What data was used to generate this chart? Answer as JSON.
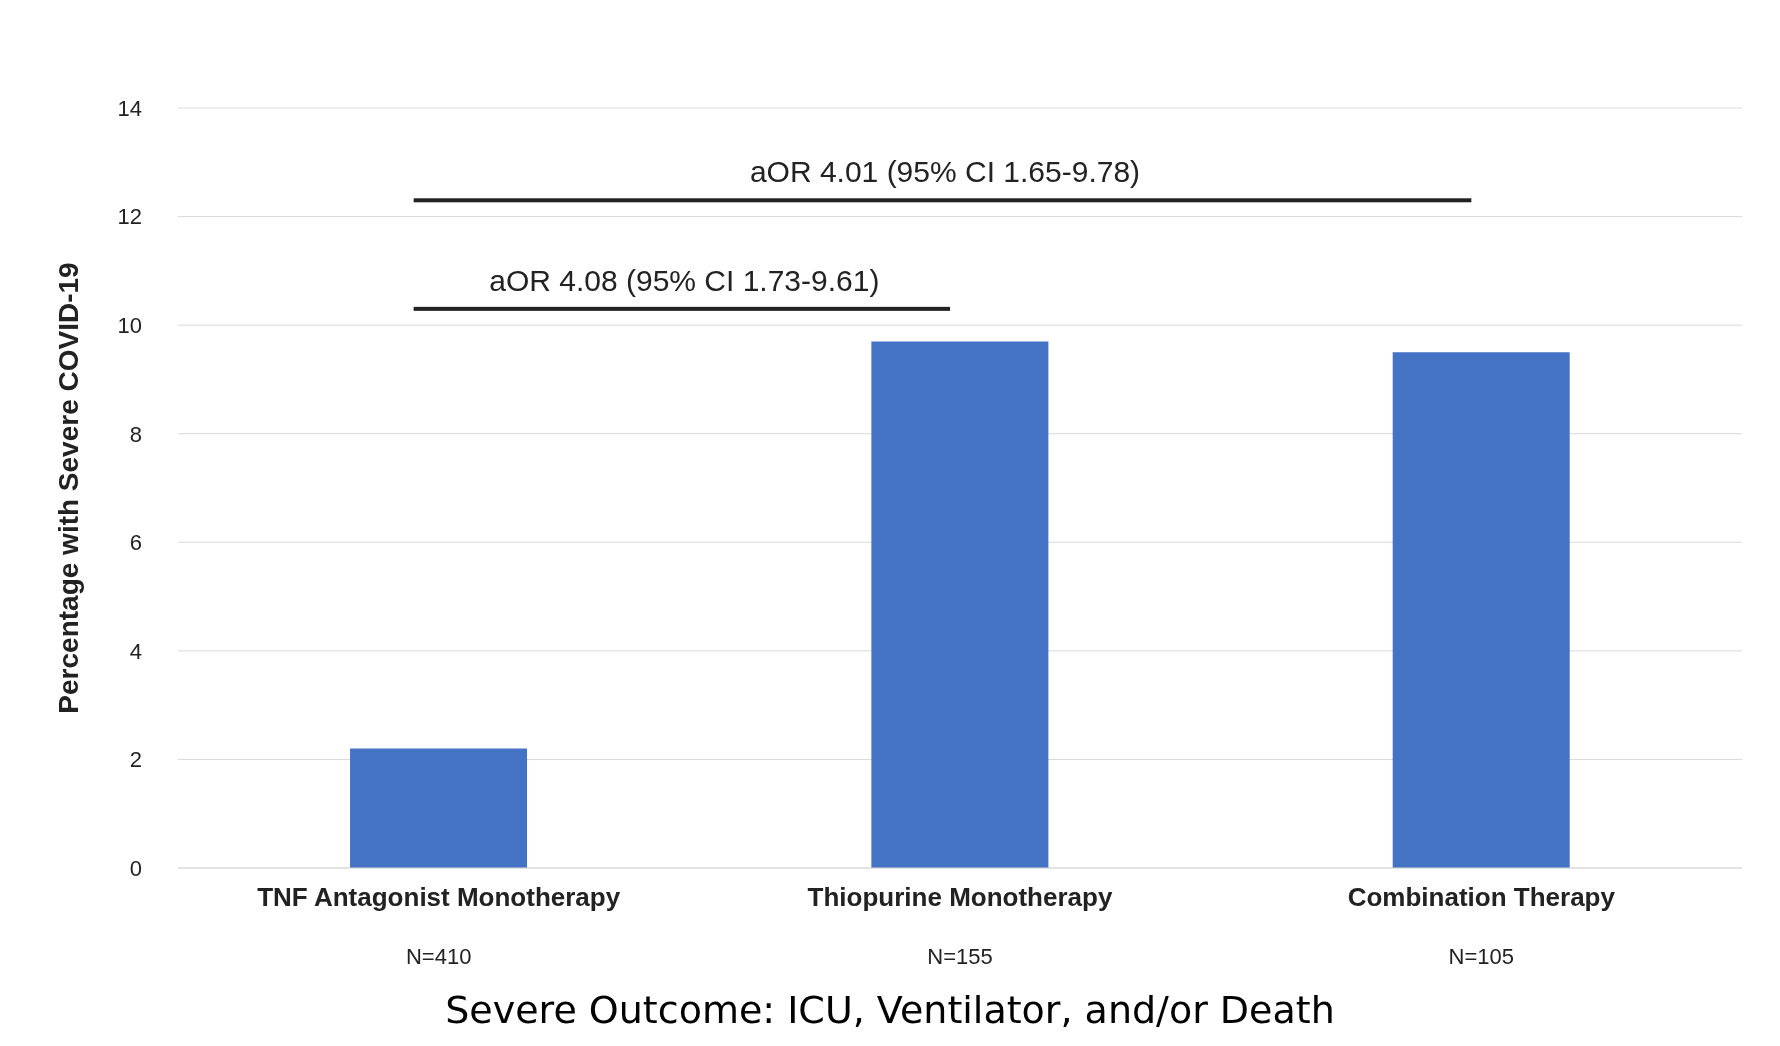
{
  "chart_data": {
    "type": "bar",
    "ylabel": "Percentage with Severe COVID-19",
    "categories": [
      "TNF Antagonist Monotherapy",
      "Thiopurine Monotherapy",
      "Combination Therapy"
    ],
    "values": [
      2.2,
      9.7,
      9.5
    ],
    "color": "#4472c4",
    "ylim": [
      0,
      14
    ],
    "yticks": [
      0,
      2,
      4,
      6,
      8,
      10,
      12,
      14
    ],
    "grid": "y",
    "annotations": [
      "aOR 4.01 (95% CI 1.65-9.78)",
      "aOR 4.08 (95% CI 1.73-9.61)",
      "N=410",
      "N=155",
      "N=105",
      "Severe Outcome: ICU, Ventilator, and/or Death"
    ]
  }
}
